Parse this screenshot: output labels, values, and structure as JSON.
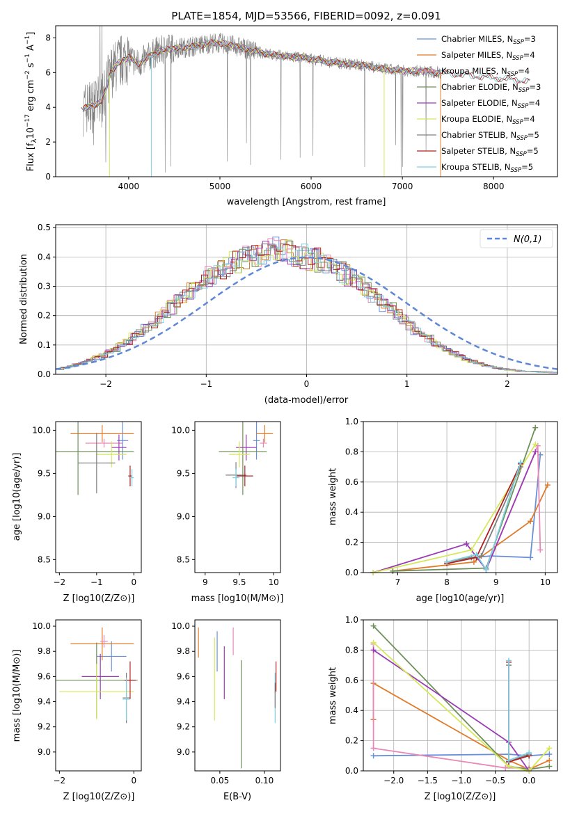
{
  "figure": {
    "title": "PLATE=1854, MJD=53566, FIBERID=0092, z=0.091",
    "colors": {
      "chabrier_miles": "#6a8fd8",
      "salpeter_miles": "#e07b2a",
      "kroupa_miles": "#e887b8",
      "chabrier_elodie": "#6e8f5a",
      "salpeter_elodie": "#9a3bb5",
      "kroupa_elodie": "#d4e85a",
      "chabrier_stelib": "#7f7f7f",
      "salpeter_stelib": "#b02020",
      "kroupa_stelib": "#7fd0e0",
      "data": "#808080",
      "normal": "#5f87d8"
    }
  },
  "chart_data": [
    {
      "id": "spectrum",
      "type": "line",
      "title": "PLATE=1854, MJD=53566, FIBERID=0092, z=0.091",
      "xlabel": "wavelength [Angstrom, rest frame]",
      "ylabel": "Flux [f_λ10^-17 erg cm^-2 s^-1 A^-1]",
      "ylabel_parts": {
        "a": "Flux [f",
        "b": "λ",
        "c": "10",
        "d": "−17",
        "e": " erg cm",
        "f": "−2",
        "g": " s",
        "h": "−1",
        "i": " A",
        "j": "−1",
        "k": "]"
      },
      "xlim": [
        3200,
        8700
      ],
      "ylim": [
        0,
        8.7
      ],
      "xticks": [
        4000,
        5000,
        6000,
        7000,
        8000
      ],
      "yticks": [
        0,
        2,
        4,
        6,
        8
      ],
      "legend_position": "upper-right",
      "legend": [
        {
          "pre": "Chabrier MILES, N",
          "sub": "SSP",
          "post": "=3",
          "key": "chabrier_miles"
        },
        {
          "pre": "Salpeter MILES, N",
          "sub": "SSP",
          "post": "=4",
          "key": "salpeter_miles"
        },
        {
          "pre": "Kroupa MILES, N",
          "sub": "SSP",
          "post": "=4",
          "key": "kroupa_miles"
        },
        {
          "pre": "Chabrier ELODIE, N",
          "sub": "SSP",
          "post": "=3",
          "key": "chabrier_elodie"
        },
        {
          "pre": "Salpeter ELODIE, N",
          "sub": "SSP",
          "post": "=4",
          "key": "salpeter_elodie"
        },
        {
          "pre": "Kroupa ELODIE, N",
          "sub": "SSP",
          "post": "=4",
          "key": "kroupa_elodie"
        },
        {
          "pre": "Chabrier STELIB, N",
          "sub": "SSP",
          "post": "=5",
          "key": "chabrier_stelib"
        },
        {
          "pre": "Salpeter STELIB, N",
          "sub": "SSP",
          "post": "=5",
          "key": "salpeter_stelib"
        },
        {
          "pre": "Kroupa STELIB, N",
          "sub": "SSP",
          "post": "=5",
          "key": "kroupa_stelib"
        }
      ],
      "continuum": {
        "x": [
          3500,
          3600,
          3700,
          3750,
          3800,
          3900,
          4000,
          4100,
          4200,
          4300,
          4500,
          4700,
          4900,
          5000,
          5200,
          5400,
          5600,
          5800,
          6000,
          6200,
          6400,
          6600,
          6800,
          7000,
          7200,
          7400,
          7600,
          7800,
          8000,
          8200,
          8400
        ],
        "y": [
          3.9,
          4.1,
          4.3,
          5.0,
          6.0,
          6.6,
          6.9,
          6.5,
          6.8,
          7.2,
          7.4,
          7.5,
          7.7,
          7.7,
          7.5,
          7.2,
          7.0,
          6.9,
          6.8,
          6.6,
          6.5,
          6.4,
          6.2,
          6.1,
          6.1,
          6.0,
          5.9,
          5.8,
          5.7,
          5.6,
          5.5
        ]
      }
    },
    {
      "id": "residuals",
      "type": "histogram",
      "xlabel": "(data-model)/error",
      "ylabel": "Normed distribution",
      "xlim": [
        -2.5,
        2.5
      ],
      "ylim": [
        0,
        0.51
      ],
      "xticks": [
        -2,
        -1,
        0,
        1,
        2
      ],
      "yticks": [
        0.0,
        0.1,
        0.2,
        0.3,
        0.4,
        0.5
      ],
      "grid": true,
      "legend_position": "upper-right",
      "legend_label": "N(0,1)",
      "bin_width": 0.1,
      "bins_from": -2.5,
      "mean_density": [
        0.018,
        0.022,
        0.027,
        0.033,
        0.04,
        0.047,
        0.056,
        0.065,
        0.076,
        0.087,
        0.1,
        0.113,
        0.128,
        0.143,
        0.159,
        0.176,
        0.193,
        0.211,
        0.229,
        0.248,
        0.265,
        0.283,
        0.3,
        0.316,
        0.331,
        0.345,
        0.358,
        0.369,
        0.379,
        0.387,
        0.394,
        0.4,
        0.405,
        0.412,
        0.42,
        0.425,
        0.425,
        0.42,
        0.412,
        0.403,
        0.396,
        0.39,
        0.382,
        0.373,
        0.362,
        0.35,
        0.337,
        0.322,
        0.307,
        0.291,
        0.274,
        0.256,
        0.239,
        0.221,
        0.203,
        0.185,
        0.168,
        0.152,
        0.136,
        0.121,
        0.107,
        0.094,
        0.082,
        0.071,
        0.061,
        0.052,
        0.044,
        0.037,
        0.031,
        0.026,
        0.022,
        0.018,
        0.015,
        0.013,
        0.011,
        0.01,
        0.009,
        0.008,
        0.007,
        0.006
      ],
      "normal_curve": {
        "mean": 0,
        "sigma": 1
      }
    },
    {
      "id": "age_vs_Z",
      "type": "scatter",
      "xlabel": "Z [log10(Z/Z⊙)]",
      "ylabel": "age  [log10(age/yr)]",
      "xlim": [
        -2.1,
        0.2
      ],
      "ylim": [
        8.35,
        10.1
      ],
      "xticks": [
        -2,
        -1,
        0
      ],
      "yticks": [
        8.5,
        9.0,
        9.5,
        10.0
      ],
      "points": [
        {
          "key": "chabrier_miles",
          "x": -0.3,
          "y": 9.88,
          "xerr": 0.15,
          "yerr": 0.22
        },
        {
          "key": "salpeter_miles",
          "x": -0.85,
          "y": 9.96,
          "xerr": 0.85,
          "yerr": 0.1
        },
        {
          "key": "kroupa_miles",
          "x": -0.8,
          "y": 9.85,
          "xerr": 0.5,
          "yerr": 0.05
        },
        {
          "key": "chabrier_elodie",
          "x": -1.5,
          "y": 9.75,
          "xerr": 1.5,
          "yerr": 0.5
        },
        {
          "key": "salpeter_elodie",
          "x": -0.4,
          "y": 9.8,
          "xerr": 0.2,
          "yerr": 0.15
        },
        {
          "key": "kroupa_elodie",
          "x": -0.6,
          "y": 9.72,
          "xerr": 0.4,
          "yerr": 0.15
        },
        {
          "key": "chabrier_stelib",
          "x": -1.0,
          "y": 9.62,
          "xerr": 0.5,
          "yerr": 0.35
        },
        {
          "key": "salpeter_stelib",
          "x": -0.1,
          "y": 9.47,
          "xerr": 0.05,
          "yerr": 0.12
        },
        {
          "key": "kroupa_stelib",
          "x": -0.05,
          "y": 9.45,
          "xerr": 0.05,
          "yerr": 0.1
        }
      ]
    },
    {
      "id": "age_vs_mass",
      "type": "scatter",
      "xlabel": "mass [log10(M/M⊙)]",
      "ylabel": "",
      "xlim": [
        8.85,
        10.1
      ],
      "ylim": [
        8.35,
        10.1
      ],
      "xticks": [
        9,
        9.5,
        10
      ],
      "yticks": [
        8.5,
        9.0,
        9.5,
        10.0
      ],
      "points": [
        {
          "key": "chabrier_miles",
          "x": 9.75,
          "y": 9.88,
          "xerr": 0.05,
          "yerr": 0.22
        },
        {
          "key": "salpeter_miles",
          "x": 9.87,
          "y": 9.96,
          "xerr": 0.12,
          "yerr": 0.1
        },
        {
          "key": "kroupa_miles",
          "x": 9.85,
          "y": 9.85,
          "xerr": 0.05,
          "yerr": 0.05
        },
        {
          "key": "chabrier_elodie",
          "x": 9.55,
          "y": 9.75,
          "xerr": 0.35,
          "yerr": 0.5
        },
        {
          "key": "salpeter_elodie",
          "x": 9.6,
          "y": 9.8,
          "xerr": 0.15,
          "yerr": 0.15
        },
        {
          "key": "kroupa_elodie",
          "x": 9.5,
          "y": 9.72,
          "xerr": 0.15,
          "yerr": 0.15
        },
        {
          "key": "chabrier_stelib",
          "x": 9.45,
          "y": 9.48,
          "xerr": 0.15,
          "yerr": 0.15
        },
        {
          "key": "salpeter_stelib",
          "x": 9.58,
          "y": 9.47,
          "xerr": 0.12,
          "yerr": 0.12
        },
        {
          "key": "kroupa_stelib",
          "x": 9.45,
          "y": 9.45,
          "xerr": 0.05,
          "yerr": 0.1
        }
      ]
    },
    {
      "id": "weight_vs_age",
      "type": "line",
      "xlabel": "age  [log10(age/yr)]",
      "ylabel": "mass weight",
      "xlim": [
        6.3,
        10.25
      ],
      "ylim": [
        0,
        1.0
      ],
      "xticks": [
        7,
        8,
        9,
        10
      ],
      "yticks": [
        0.0,
        0.2,
        0.4,
        0.6,
        0.8,
        1.0
      ],
      "grid": true,
      "series": [
        {
          "key": "chabrier_miles",
          "x": [
            8.5,
            8.9,
            9.7,
            9.9
          ],
          "y": [
            0.1,
            0.11,
            0.1,
            0.78
          ]
        },
        {
          "key": "salpeter_miles",
          "x": [
            6.9,
            8.55,
            9.7,
            10.05
          ],
          "y": [
            0.01,
            0.07,
            0.34,
            0.58
          ]
        },
        {
          "key": "kroupa_miles",
          "x": [
            8.8,
            9.85,
            9.9
          ],
          "y": [
            0.02,
            0.84,
            0.15
          ]
        },
        {
          "key": "chabrier_elodie",
          "x": [
            6.9,
            8.8,
            9.8
          ],
          "y": [
            0.01,
            0.03,
            0.96
          ]
        },
        {
          "key": "salpeter_elodie",
          "x": [
            6.5,
            8.4,
            8.8,
            9.8
          ],
          "y": [
            0.0,
            0.19,
            0.02,
            0.8
          ]
        },
        {
          "key": "kroupa_elodie",
          "x": [
            6.5,
            8.5,
            9.8
          ],
          "y": [
            0.0,
            0.15,
            0.85
          ]
        },
        {
          "key": "chabrier_stelib",
          "x": [
            8.0,
            8.5,
            8.7,
            9.5
          ],
          "y": [
            0.07,
            0.1,
            0.11,
            0.7
          ]
        },
        {
          "key": "salpeter_stelib",
          "x": [
            8.0,
            8.6,
            9.5
          ],
          "y": [
            0.06,
            0.1,
            0.72
          ]
        },
        {
          "key": "kroupa_stelib",
          "x": [
            8.0,
            8.6,
            8.8,
            9.5
          ],
          "y": [
            0.07,
            0.12,
            0.02,
            0.73
          ]
        }
      ]
    },
    {
      "id": "mass_vs_Z",
      "type": "scatter",
      "xlabel": "Z [log10(Z/Z⊙)]",
      "ylabel": "mass [log10(M/M⊙)]",
      "xlim": [
        -2.1,
        0.2
      ],
      "ylim": [
        8.85,
        10.05
      ],
      "xticks": [
        -2,
        0
      ],
      "yticks": [
        9.0,
        9.2,
        9.4,
        9.6,
        9.8,
        10.0
      ],
      "points": [
        {
          "key": "chabrier_miles",
          "x": -0.6,
          "y": 9.76,
          "xerr": 0.4,
          "yerr": 0.12
        },
        {
          "key": "salpeter_miles",
          "x": -0.85,
          "y": 9.86,
          "xerr": 0.85,
          "yerr": 0.13
        },
        {
          "key": "kroupa_miles",
          "x": -0.8,
          "y": 9.88,
          "xerr": 0.1,
          "yerr": 0.05
        },
        {
          "key": "chabrier_elodie",
          "x": -1.0,
          "y": 9.57,
          "xerr": 1.1,
          "yerr": 0.3
        },
        {
          "key": "salpeter_elodie",
          "x": -0.9,
          "y": 9.6,
          "xerr": 0.5,
          "yerr": 0.18
        },
        {
          "key": "kroupa_elodie",
          "x": -1.0,
          "y": 9.48,
          "xerr": 1.0,
          "yerr": 0.22
        },
        {
          "key": "chabrier_stelib",
          "x": -0.2,
          "y": 9.43,
          "xerr": 0.1,
          "yerr": 0.2
        },
        {
          "key": "salpeter_stelib",
          "x": -0.1,
          "y": 9.57,
          "xerr": 0.15,
          "yerr": 0.15
        },
        {
          "key": "kroupa_stelib",
          "x": -0.2,
          "y": 9.42,
          "xerr": 0.1,
          "yerr": 0.17
        }
      ]
    },
    {
      "id": "mass_vs_ebv",
      "type": "scatter",
      "xlabel": "E(B-V)",
      "ylabel": "",
      "xlim": [
        0.022,
        0.118
      ],
      "ylim": [
        8.85,
        10.05
      ],
      "xticks": [
        0.05,
        0.1
      ],
      "yticks": [
        9.0,
        9.2,
        9.4,
        9.6,
        9.8,
        10.0
      ],
      "points": [
        {
          "key": "salpeter_miles",
          "x": 0.026,
          "y": 9.87,
          "xerr": 0,
          "yerr": 0.12
        },
        {
          "key": "chabrier_miles",
          "x": 0.047,
          "y": 9.8,
          "xerr": 0,
          "yerr": 0.16
        },
        {
          "key": "kroupa_elodie",
          "x": 0.044,
          "y": 9.58,
          "xerr": 0,
          "yerr": 0.33
        },
        {
          "key": "salpeter_elodie",
          "x": 0.055,
          "y": 9.63,
          "xerr": 0,
          "yerr": 0.21
        },
        {
          "key": "kroupa_miles",
          "x": 0.065,
          "y": 9.88,
          "xerr": 0,
          "yerr": 0.11
        },
        {
          "key": "chabrier_elodie",
          "x": 0.074,
          "y": 9.3,
          "xerr": 0,
          "yerr": 0.43
        },
        {
          "key": "salpeter_stelib",
          "x": 0.113,
          "y": 9.6,
          "xerr": 0,
          "yerr": 0.12
        },
        {
          "key": "kroupa_stelib",
          "x": 0.112,
          "y": 9.43,
          "xerr": 0,
          "yerr": 0.2
        },
        {
          "key": "chabrier_stelib",
          "x": 0.112,
          "y": 9.45,
          "xerr": 0,
          "yerr": 0.1
        }
      ]
    },
    {
      "id": "weight_vs_Z",
      "type": "line",
      "xlabel": "Z [log10(Z/Z⊙)]",
      "ylabel": "mass weight",
      "xlim": [
        -2.45,
        0.42
      ],
      "ylim": [
        0,
        1.0
      ],
      "xticks": [
        -2.0,
        -1.5,
        -1.0,
        -0.5,
        0.0
      ],
      "grid": true,
      "series": [
        {
          "key": "chabrier_miles",
          "x": [
            -2.3,
            -0.3,
            0.0,
            0.3
          ],
          "y": [
            0.1,
            0.11,
            0.1,
            0.11
          ]
        },
        {
          "key": "salpeter_miles",
          "x": [
            -2.3,
            -2.3,
            -0.3,
            0.0,
            0.3
          ],
          "y": [
            0.34,
            0.58,
            0.07,
            0.01,
            0.07
          ]
        },
        {
          "key": "kroupa_miles",
          "x": [
            -2.3,
            -2.3,
            -0.35,
            0.0
          ],
          "y": [
            0.84,
            0.15,
            0.02,
            0.02
          ]
        },
        {
          "key": "chabrier_elodie",
          "x": [
            -2.3,
            -0.3,
            0.0,
            0.3
          ],
          "y": [
            0.96,
            0.03,
            0.01,
            0.03
          ]
        },
        {
          "key": "salpeter_elodie",
          "x": [
            -2.3,
            -0.3,
            0.0
          ],
          "y": [
            0.8,
            0.19,
            0.0
          ]
        },
        {
          "key": "kroupa_elodie",
          "x": [
            -2.3,
            -0.3,
            0.0,
            0.3
          ],
          "y": [
            0.85,
            0.03,
            0.0,
            0.15
          ]
        },
        {
          "key": "chabrier_stelib",
          "x": [
            -0.3,
            -0.3,
            0.0
          ],
          "y": [
            0.7,
            0.06,
            0.11
          ]
        },
        {
          "key": "salpeter_stelib",
          "x": [
            -0.3,
            -0.3,
            0.0
          ],
          "y": [
            0.72,
            0.06,
            0.1
          ]
        },
        {
          "key": "kroupa_stelib",
          "x": [
            -0.3,
            -0.3,
            0.0
          ],
          "y": [
            0.73,
            0.07,
            0.12
          ]
        }
      ]
    }
  ]
}
